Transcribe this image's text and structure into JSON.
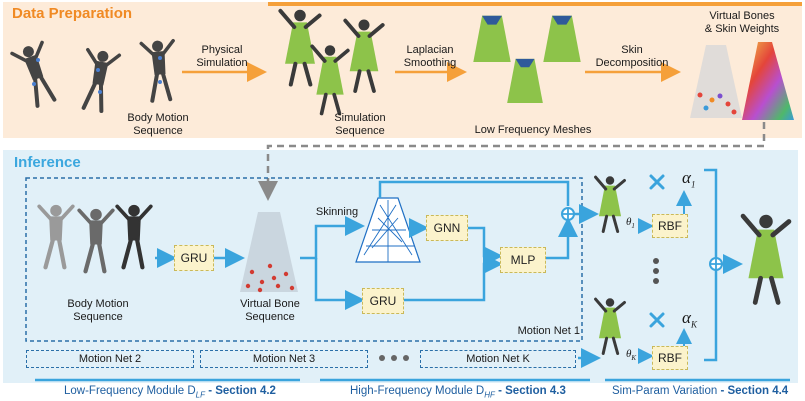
{
  "colors": {
    "prep_bg": "#fdebd9",
    "prep_title": "#f08a24",
    "inference_bg": "#e1f0f8",
    "inference_title": "#3ba7de",
    "arrow_orange": "#f5a03a",
    "arrow_blue": "#3aa4dd",
    "box_fill": "#fbf3cc",
    "footer_text": "#1f5fa0",
    "dress_green": "#8dc34a",
    "mannequin": "#3a3a3a"
  },
  "prep": {
    "title": "Data Preparation",
    "body_motion": "Body Motion\nSequence",
    "physical_simulation": "Physical\nSimulation",
    "simulation_sequence": "Simulation\nSequence",
    "laplacian": "Laplacian\nSmoothing",
    "low_freq_meshes": "Low Frequency Meshes",
    "skin_decomp": "Skin\nDecomposition",
    "virtual_bones": "Virtual Bones\n& Skin Weights"
  },
  "inference": {
    "title": "Inference",
    "body_motion": "Body Motion\nSequence",
    "gru_left": "GRU",
    "virtual_bone_seq": "Virtual Bone\nSequence",
    "skinning": "Skinning",
    "gnn": "GNN",
    "mlp": "MLP",
    "gru_bottom": "GRU",
    "rbf_top": "RBF",
    "rbf_bottom": "RBF",
    "alpha_1": "α",
    "alpha_1_sub": "1",
    "alpha_k": "α",
    "alpha_k_sub": "K",
    "theta_1": "θ",
    "theta_1_sub": "1",
    "theta_k": "θ",
    "theta_k_sub": "K",
    "motion_net_1": "Motion Net 1",
    "motion_net_2": "Motion Net 2",
    "motion_net_3": "Motion Net 3",
    "motion_net_k": "Motion Net K"
  },
  "footer": {
    "lf_prefix": "Low-Frequency Module D",
    "lf_sub": "LF",
    "lf_section": " - Section 4.2",
    "hf_prefix": "High-Frequency Module D",
    "hf_sub": "HF",
    "hf_section": " - Section 4.3",
    "sim_prefix": "Sim-Param Variation",
    "sim_section": " - Section 4.4"
  }
}
